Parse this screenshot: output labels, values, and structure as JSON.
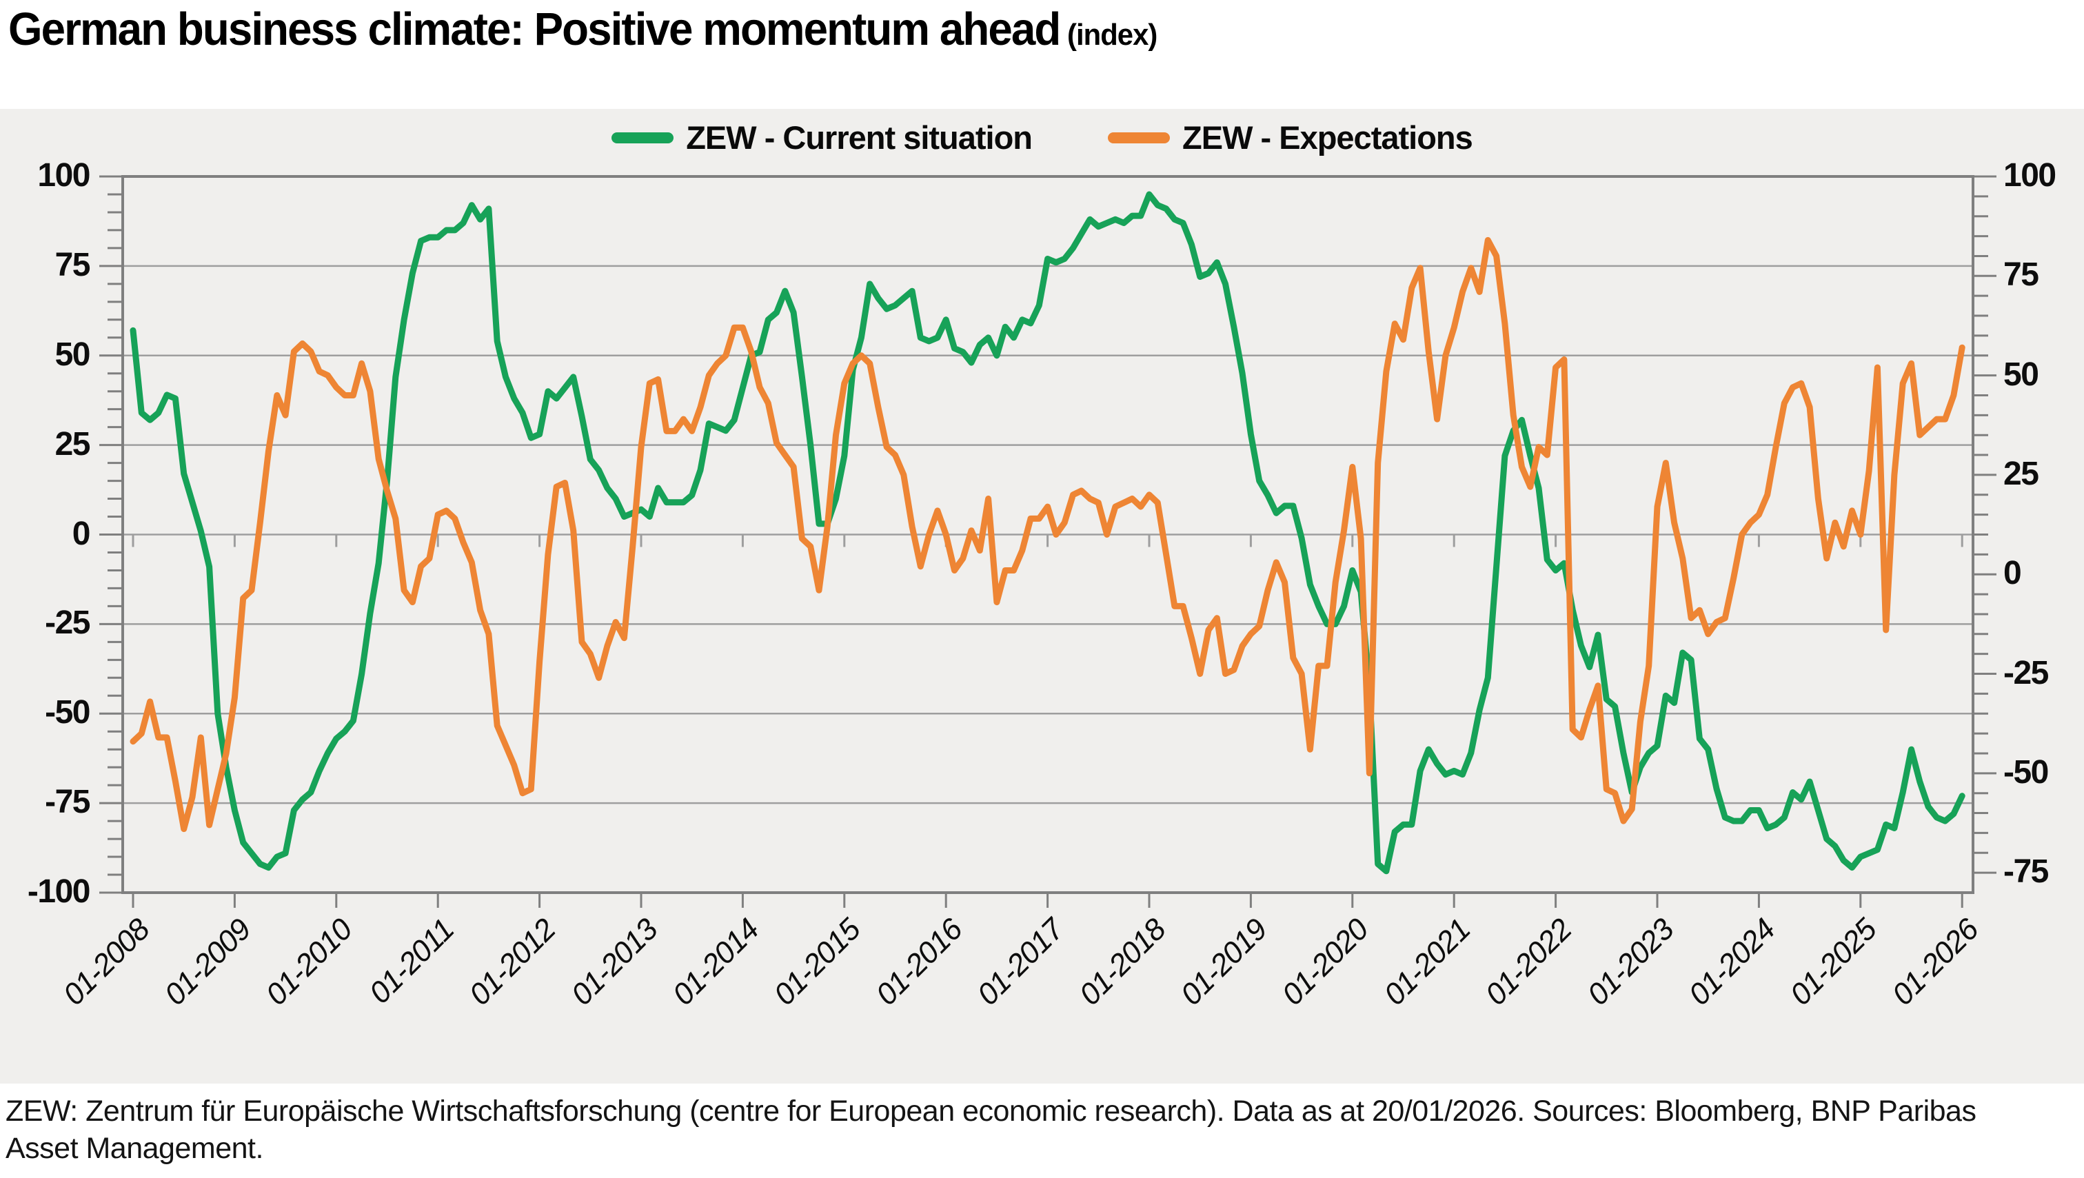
{
  "title": {
    "main": "German business climate: Positive momentum ahead",
    "suffix": " (index)"
  },
  "legend": [
    {
      "label": "ZEW - Current situation",
      "color": "#17a258"
    },
    {
      "label": "ZEW - Expectations",
      "color": "#ee8534"
    }
  ],
  "footer": {
    "line1": "ZEW: Zentrum für Europäische Wirtschaftsforschung (centre for European economic research). Data as at 20/01/2026. Sources: Bloomberg, BNP Paribas",
    "line2": "Asset Management."
  },
  "colors": {
    "panel_bg": "#f0efed",
    "gridline": "#9e9e9e",
    "frame": "#7f7f7f",
    "green": "#17a258",
    "orange": "#ee8534",
    "text": "#0d0d0d"
  },
  "chart_data": {
    "type": "line",
    "title": "German business climate: Positive momentum ahead (index)",
    "frequency": "monthly",
    "x_start": "2008-01",
    "x_end": "2026-01",
    "x_tick_labels": [
      "01-2008",
      "01-2009",
      "01-2010",
      "01-2011",
      "01-2012",
      "01-2013",
      "01-2014",
      "01-2015",
      "01-2016",
      "01-2017",
      "01-2018",
      "01-2019",
      "01-2020",
      "01-2021",
      "01-2022",
      "01-2023",
      "01-2024",
      "01-2025",
      "01-2026"
    ],
    "left_axis": {
      "range": [
        -100,
        100
      ],
      "tick_step": 25,
      "minor_step": 5,
      "tick_labels": [
        "100",
        "75",
        "50",
        "25",
        "0",
        "-25",
        "-50",
        "-75",
        "-100"
      ]
    },
    "right_axis": {
      "range": [
        -80,
        100
      ],
      "tick_step": 25,
      "minor_step": 5,
      "tick_labels": [
        "100",
        "75",
        "50",
        "25",
        "0",
        "-25",
        "-50",
        "-75"
      ]
    },
    "grid": "horizontal-major-left-axis",
    "legend_position": "top-center",
    "series": [
      {
        "name": "ZEW - Current situation",
        "axis": "left",
        "color": "#17a258",
        "values": [
          57,
          34,
          32,
          34,
          39,
          38,
          17,
          9,
          1,
          -9,
          -50,
          -65,
          -77,
          -86,
          -89,
          -92,
          -93,
          -90,
          -89,
          -77,
          -74,
          -72,
          -66,
          -61,
          -57,
          -55,
          -52,
          -39,
          -22,
          -8,
          15,
          44,
          60,
          73,
          82,
          83,
          83,
          85,
          85,
          87,
          92,
          88,
          91,
          54,
          44,
          38,
          34,
          27,
          28,
          40,
          38,
          41,
          44,
          33,
          21,
          18,
          13,
          10,
          5,
          6,
          7,
          5,
          13,
          9,
          9,
          9,
          11,
          18,
          31,
          30,
          29,
          32,
          41,
          50,
          51,
          60,
          62,
          68,
          62,
          44,
          25,
          3,
          3,
          10,
          22,
          46,
          55,
          70,
          66,
          63,
          64,
          66,
          68,
          55,
          54,
          55,
          60,
          52,
          51,
          48,
          53,
          55,
          50,
          58,
          55,
          60,
          59,
          64,
          77,
          76,
          77,
          80,
          84,
          88,
          86,
          87,
          88,
          87,
          89,
          89,
          95,
          92,
          91,
          88,
          87,
          81,
          72,
          73,
          76,
          70,
          58,
          45,
          28,
          15,
          11,
          6,
          8,
          8,
          -1,
          -14,
          -20,
          -25,
          -25,
          -20,
          -10,
          -16,
          -43,
          -92,
          -94,
          -83,
          -81,
          -81,
          -66,
          -60,
          -64,
          -67,
          -66,
          -67,
          -61,
          -49,
          -40,
          -9,
          22,
          29,
          32,
          22,
          13,
          -7,
          -10,
          -8,
          -21,
          -31,
          -37,
          -28,
          -46,
          -48,
          -61,
          -72,
          -65,
          -61,
          -59,
          -45,
          -47,
          -33,
          -35,
          -57,
          -60,
          -71,
          -79,
          -80,
          -80,
          -77,
          -77,
          -82,
          -81,
          -79,
          -72,
          -74,
          -69,
          -77,
          -85,
          -87,
          -91,
          -93,
          -90,
          -89,
          -88,
          -81,
          -82,
          -72,
          -60,
          -69,
          -76,
          -79,
          -80,
          -78,
          -73
        ]
      },
      {
        "name": "ZEW - Expectations",
        "axis": "right",
        "color": "#ee8534",
        "values": [
          -42,
          -40,
          -32,
          -41,
          -41,
          -52,
          -64,
          -56,
          -41,
          -63,
          -54,
          -45,
          -31,
          -6,
          -4,
          13,
          31,
          45,
          40,
          56,
          58,
          56,
          51,
          50,
          47,
          45,
          45,
          53,
          46,
          29,
          21,
          14,
          -4,
          -7,
          2,
          4,
          15,
          16,
          14,
          8,
          3,
          -9,
          -15,
          -38,
          -43,
          -48,
          -55,
          -54,
          -22,
          5,
          22,
          23,
          11,
          -17,
          -20,
          -26,
          -18,
          -12,
          -16,
          7,
          32,
          48,
          49,
          36,
          36,
          39,
          36,
          42,
          50,
          53,
          55,
          62,
          62,
          56,
          47,
          43,
          33,
          30,
          27,
          9,
          7,
          -4,
          12,
          35,
          48,
          53,
          55,
          53,
          42,
          32,
          30,
          25,
          12,
          2,
          10,
          16,
          10,
          1,
          4,
          11,
          6,
          19,
          -7,
          1,
          1,
          6,
          14,
          14,
          17,
          10,
          13,
          20,
          21,
          19,
          18,
          10,
          17,
          18,
          19,
          17,
          20,
          18,
          5,
          -8,
          -8,
          -16,
          -25,
          -14,
          -11,
          -25,
          -24,
          -18,
          -15,
          -13,
          -4,
          3,
          -2,
          -21,
          -25,
          -44,
          -23,
          -23,
          -2,
          11,
          27,
          9,
          -50,
          28,
          51,
          63,
          59,
          72,
          77,
          56,
          39,
          55,
          62,
          71,
          77,
          71,
          84,
          80,
          63,
          40,
          27,
          22,
          32,
          30,
          52,
          54,
          -39,
          -41,
          -34,
          -28,
          -54,
          -55,
          -62,
          -59,
          -37,
          -23,
          17,
          28,
          13,
          4,
          -11,
          -9,
          -15,
          -12,
          -11,
          -1,
          10,
          13,
          15,
          20,
          32,
          43,
          47,
          48,
          42,
          19,
          4,
          13,
          7,
          16,
          10,
          26,
          52,
          -14,
          25,
          48,
          53,
          35,
          37,
          39,
          39,
          45,
          57
        ]
      }
    ]
  }
}
